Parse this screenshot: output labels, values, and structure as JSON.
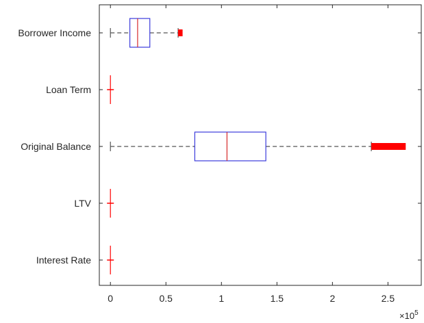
{
  "chart_data": {
    "type": "boxplot",
    "orientation": "horizontal",
    "categories": [
      "Borrower Income",
      "Loan Term",
      "Original Balance",
      "LTV",
      "Interest Rate"
    ],
    "boxes": [
      {
        "label": "Borrower Income",
        "whisker_low": 0,
        "q1": 17500,
        "median": 24500,
        "q3": 35500,
        "whisker_high": 61000,
        "outliers_min": 61000,
        "outliers_max": 65000
      },
      {
        "label": "Loan Term",
        "whisker_low": 0,
        "q1": 0,
        "median": 0,
        "q3": 0,
        "whisker_high": 0,
        "outliers_min": 0,
        "outliers_max": 0
      },
      {
        "label": "Original Balance",
        "whisker_low": 0,
        "q1": 76000,
        "median": 105000,
        "q3": 140000,
        "whisker_high": 235000,
        "outliers_min": 235000,
        "outliers_max": 266000
      },
      {
        "label": "LTV",
        "whisker_low": 0,
        "q1": 0,
        "median": 0,
        "q3": 0,
        "whisker_high": 0,
        "outliers_min": 0,
        "outliers_max": 0
      },
      {
        "label": "Interest Rate",
        "whisker_low": 0,
        "q1": 0,
        "median": 0,
        "q3": 0,
        "whisker_high": 0,
        "outliers_min": 0,
        "outliers_max": 0
      }
    ],
    "x_ticks": [
      0,
      50000,
      100000,
      150000,
      200000,
      250000
    ],
    "x_tick_labels": [
      "0",
      "0.5",
      "1",
      "1.5",
      "2",
      "2.5"
    ],
    "x_exponent_base": "×10",
    "x_exponent_power": "5",
    "xlim": [
      -10000,
      280000
    ],
    "grid": false,
    "colors": {
      "box": "#3b3bdb",
      "median": "#d62728",
      "whisker": "#555555",
      "outlier": "#ff0000",
      "axis": "#262626"
    }
  }
}
